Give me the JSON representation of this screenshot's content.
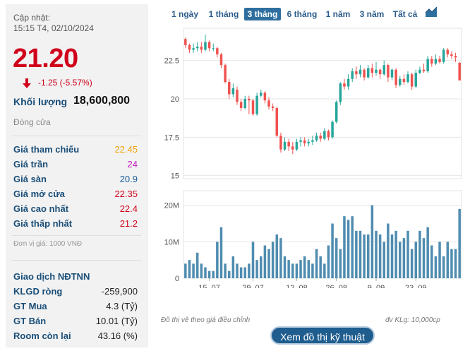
{
  "header": {
    "update_label": "Cập nhật:",
    "update_time": "15:15 T4, 02/10/2024",
    "price": "21.20",
    "change": "-1.25 (-5.57%)",
    "volume_label": "Khối lượng",
    "volume_value": "18,600,800",
    "status": "Đóng cửa"
  },
  "stats": [
    {
      "label": "Giá tham chiếu",
      "value": "22.45",
      "color": "#f0a30a"
    },
    {
      "label": "Giá trần",
      "value": "24",
      "color": "#c018c0"
    },
    {
      "label": "Giá sàn",
      "value": "20.9",
      "color": "#1a5d9b"
    },
    {
      "label": "Giá mở cửa",
      "value": "22.35",
      "color": "#d0021b"
    },
    {
      "label": "Giá cao nhất",
      "value": "22.4",
      "color": "#d0021b"
    },
    {
      "label": "Giá thấp nhất",
      "value": "21.2",
      "color": "#d0021b"
    }
  ],
  "unit_note": "Đơn vị giá: 1000 VNĐ",
  "foreign": {
    "title": "Giao dịch NĐTNN",
    "rows": [
      {
        "label": "KLGD ròng",
        "value": "-259,900"
      },
      {
        "label": "GT Mua",
        "value": "4.3 (Tỷ)"
      },
      {
        "label": "GT Bán",
        "value": "10.01 (Tỷ)"
      },
      {
        "label": "Room còn lại",
        "value": "43.16 (%)"
      }
    ]
  },
  "tabs": [
    {
      "label": "1 ngày",
      "active": false
    },
    {
      "label": "1 tháng",
      "active": false
    },
    {
      "label": "3 tháng",
      "active": true
    },
    {
      "label": "6 tháng",
      "active": false
    },
    {
      "label": "1 năm",
      "active": false
    },
    {
      "label": "3 năm",
      "active": false
    },
    {
      "label": "Tất cả",
      "active": false
    }
  ],
  "chart_icon": "area-chart-icon",
  "footnote_left": "Đồ thị vẽ theo giá điều chỉnh",
  "footnote_right": "đv KLg: 10,000cp",
  "tech_button": "Xem đồ thị kỹ thuật",
  "colors": {
    "up": "#26a69a",
    "down": "#ef5350",
    "volume": "#4f8cb0",
    "accent": "#1f5d8f"
  },
  "chart_data": {
    "type": "candlestick",
    "price_axis": {
      "ticks": [
        "22.5",
        "20",
        "17.5",
        "15"
      ],
      "ylim": [
        14.8,
        24.6
      ]
    },
    "volume_axis": {
      "ticks": [
        "20M",
        "10M",
        "0"
      ],
      "ylim": [
        0,
        24
      ]
    },
    "x_ticks": [
      "15. 07",
      "29. 07",
      "12. 08",
      "26. 08",
      "9. 09",
      "23. 09"
    ],
    "candles": [
      [
        23.9,
        23.5,
        24.0,
        23.3
      ],
      [
        23.5,
        23.2,
        23.6,
        23.0
      ],
      [
        23.2,
        23.3,
        23.6,
        23.0
      ],
      [
        23.3,
        23.4,
        23.7,
        23.1
      ],
      [
        23.4,
        23.2,
        23.7,
        23.0
      ],
      [
        23.2,
        23.7,
        24.2,
        23.1
      ],
      [
        23.7,
        23.3,
        23.8,
        23.1
      ],
      [
        23.3,
        23.3,
        23.6,
        23.1
      ],
      [
        23.3,
        22.9,
        23.4,
        22.7
      ],
      [
        22.9,
        22.2,
        23.0,
        22.0
      ],
      [
        22.2,
        21.1,
        22.3,
        21.0
      ],
      [
        21.1,
        20.3,
        21.3,
        20.0
      ],
      [
        20.3,
        20.7,
        21.0,
        20.1
      ],
      [
        20.6,
        19.8,
        20.8,
        19.6
      ],
      [
        19.8,
        19.4,
        20.0,
        19.2
      ],
      [
        19.4,
        20.0,
        20.2,
        19.3
      ],
      [
        20.0,
        19.9,
        20.2,
        19.0
      ],
      [
        19.9,
        19.0,
        20.0,
        18.9
      ],
      [
        19.0,
        20.2,
        20.4,
        18.9
      ],
      [
        20.2,
        20.4,
        20.6,
        20.1
      ],
      [
        20.4,
        19.9,
        20.5,
        19.7
      ],
      [
        19.9,
        19.5,
        20.1,
        19.3
      ],
      [
        19.5,
        19.4,
        19.7,
        19.2
      ],
      [
        19.4,
        17.6,
        19.5,
        17.5
      ],
      [
        17.6,
        16.7,
        17.8,
        16.5
      ],
      [
        16.7,
        17.2,
        17.5,
        16.6
      ],
      [
        17.2,
        16.9,
        17.4,
        16.6
      ],
      [
        16.9,
        16.7,
        17.2,
        16.4
      ],
      [
        16.7,
        17.2,
        17.4,
        16.6
      ],
      [
        17.2,
        17.3,
        17.5,
        16.9
      ],
      [
        17.3,
        17.1,
        17.5,
        16.9
      ],
      [
        17.1,
        17.2,
        17.4,
        16.9
      ],
      [
        17.2,
        17.3,
        17.6,
        17.0
      ],
      [
        17.3,
        17.6,
        17.8,
        17.2
      ],
      [
        17.6,
        17.4,
        17.8,
        17.2
      ],
      [
        17.4,
        17.9,
        18.1,
        17.3
      ],
      [
        17.9,
        17.5,
        18.0,
        17.3
      ],
      [
        17.5,
        18.5,
        18.6,
        17.4
      ],
      [
        18.5,
        19.8,
        19.9,
        18.4
      ],
      [
        19.8,
        21.0,
        21.1,
        19.6
      ],
      [
        21.0,
        20.8,
        21.3,
        20.6
      ],
      [
        20.8,
        21.3,
        21.6,
        20.6
      ],
      [
        21.3,
        21.8,
        22.0,
        21.1
      ],
      [
        21.8,
        21.6,
        22.1,
        21.3
      ],
      [
        21.6,
        21.9,
        22.2,
        21.4
      ],
      [
        21.9,
        21.4,
        22.0,
        21.2
      ],
      [
        21.4,
        22.0,
        22.2,
        21.3
      ],
      [
        22.0,
        21.7,
        22.3,
        21.4
      ],
      [
        21.7,
        21.9,
        22.4,
        21.5
      ],
      [
        21.9,
        21.6,
        22.0,
        21.3
      ],
      [
        21.6,
        22.2,
        22.5,
        21.5
      ],
      [
        22.2,
        21.4,
        22.3,
        21.1
      ],
      [
        21.4,
        21.9,
        22.0,
        21.2
      ],
      [
        21.9,
        20.9,
        22.0,
        20.7
      ],
      [
        20.9,
        21.3,
        21.5,
        20.8
      ],
      [
        21.3,
        21.1,
        21.6,
        20.9
      ],
      [
        21.1,
        21.6,
        21.8,
        21.0
      ],
      [
        21.6,
        20.8,
        21.7,
        20.6
      ],
      [
        20.8,
        21.7,
        21.9,
        20.7
      ],
      [
        21.7,
        21.9,
        22.1,
        21.6
      ],
      [
        21.9,
        21.8,
        22.3,
        21.7
      ],
      [
        21.8,
        22.6,
        22.8,
        21.7
      ],
      [
        22.6,
        22.3,
        22.8,
        22.1
      ],
      [
        22.3,
        22.6,
        22.9,
        22.2
      ],
      [
        22.6,
        22.4,
        22.8,
        22.3
      ],
      [
        22.4,
        23.2,
        23.3,
        22.3
      ],
      [
        23.2,
        22.9,
        23.3,
        22.7
      ],
      [
        22.9,
        22.8,
        23.1,
        22.6
      ],
      [
        22.8,
        22.7,
        23.0,
        22.4
      ],
      [
        22.35,
        21.2,
        22.4,
        21.2
      ]
    ],
    "volume": [
      4,
      5,
      4,
      7,
      4,
      3,
      2,
      2,
      10,
      14,
      4,
      2,
      6,
      4,
      3,
      3,
      4,
      10,
      5,
      6,
      9,
      8,
      10,
      12,
      11,
      6,
      5,
      4,
      4,
      5,
      6,
      5,
      4,
      8,
      6,
      4,
      9,
      15,
      11,
      8,
      17,
      16,
      17,
      13,
      13,
      12,
      12,
      20,
      13,
      12,
      10,
      15,
      12,
      13,
      10,
      11,
      13,
      8,
      10,
      13,
      11,
      14,
      9,
      6,
      10,
      6,
      10,
      8,
      8,
      19
    ]
  }
}
